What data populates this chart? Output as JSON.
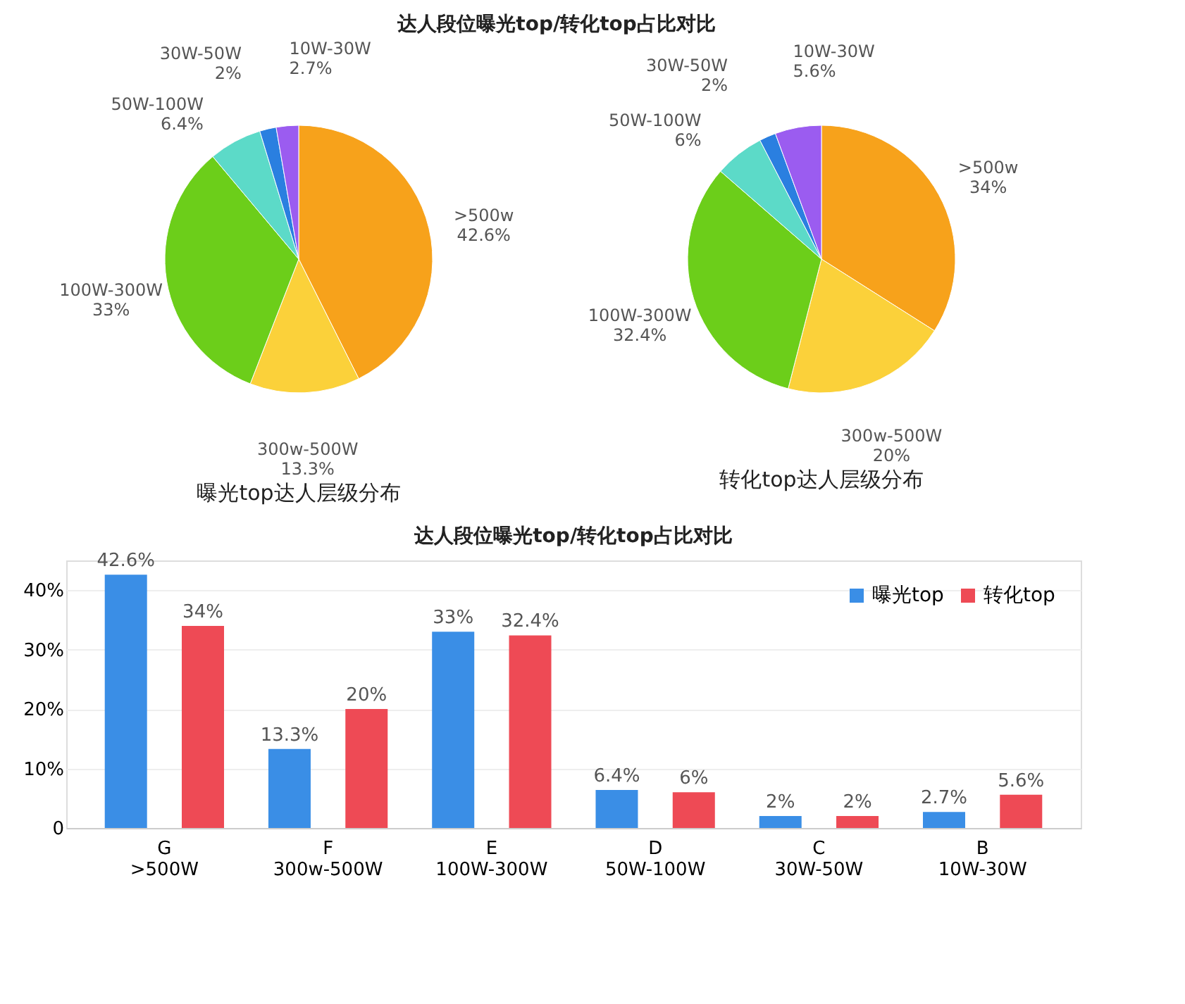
{
  "chart_data": [
    {
      "type": "pie",
      "title": "曝光top达人层级分布",
      "annotations": [
        "达人段位曝光top/转化top占比对比"
      ],
      "categories": [
        ">500w",
        "300w-500W",
        "100W-300W",
        "50W-100W",
        "30W-50W",
        "10W-30W"
      ],
      "values": [
        42.6,
        13.3,
        33,
        6.4,
        2,
        2.7
      ],
      "value_labels": [
        "42.6%",
        "13.3%",
        "33%",
        "6.4%",
        "2%",
        "2.7%"
      ],
      "colors": [
        "#f7a21b",
        "#fbd13a",
        "#6cce1a",
        "#5cdac8",
        "#2a7fe0",
        "#9b5cf0"
      ]
    },
    {
      "type": "pie",
      "title": "转化top达人层级分布",
      "categories": [
        ">500w",
        "300w-500W",
        "100W-300W",
        "50W-100W",
        "30W-50W",
        "10W-30W"
      ],
      "values": [
        34,
        20,
        32.4,
        6,
        2,
        5.6
      ],
      "value_labels": [
        "34%",
        "20%",
        "32.4%",
        "6%",
        "2%",
        "5.6%"
      ],
      "colors": [
        "#f7a21b",
        "#fbd13a",
        "#6cce1a",
        "#5cdac8",
        "#2a7fe0",
        "#9b5cf0"
      ]
    },
    {
      "type": "bar",
      "title": "达人段位曝光top/转化top占比对比",
      "categories": [
        "G\n>500W",
        "F\n300w-500W",
        "E\n100W-300W",
        "D\n50W-100W",
        "C\n30W-50W",
        "B\n10W-30W"
      ],
      "series": [
        {
          "name": "曝光top",
          "color": "#3a8ee6",
          "values": [
            42.6,
            13.3,
            33,
            6.4,
            2,
            2.7
          ],
          "value_labels": [
            "42.6%",
            "13.3%",
            "33%",
            "6.4%",
            "2%",
            "2.7%"
          ]
        },
        {
          "name": "转化top",
          "color": "#ee4a55",
          "values": [
            34,
            20,
            32.4,
            6,
            2,
            5.6
          ],
          "value_labels": [
            "34%",
            "20%",
            "32.4%",
            "6%",
            "2%",
            "5.6%"
          ]
        }
      ],
      "ylim": [
        0,
        45
      ],
      "yticks": [
        0,
        {
          "value": 10,
          "label": "10%"
        },
        {
          "value": 20,
          "label": "20%"
        },
        {
          "value": 30,
          "label": "30%"
        },
        {
          "value": 40,
          "label": "40%"
        }
      ],
      "grid": "y",
      "legend": "top right"
    }
  ]
}
